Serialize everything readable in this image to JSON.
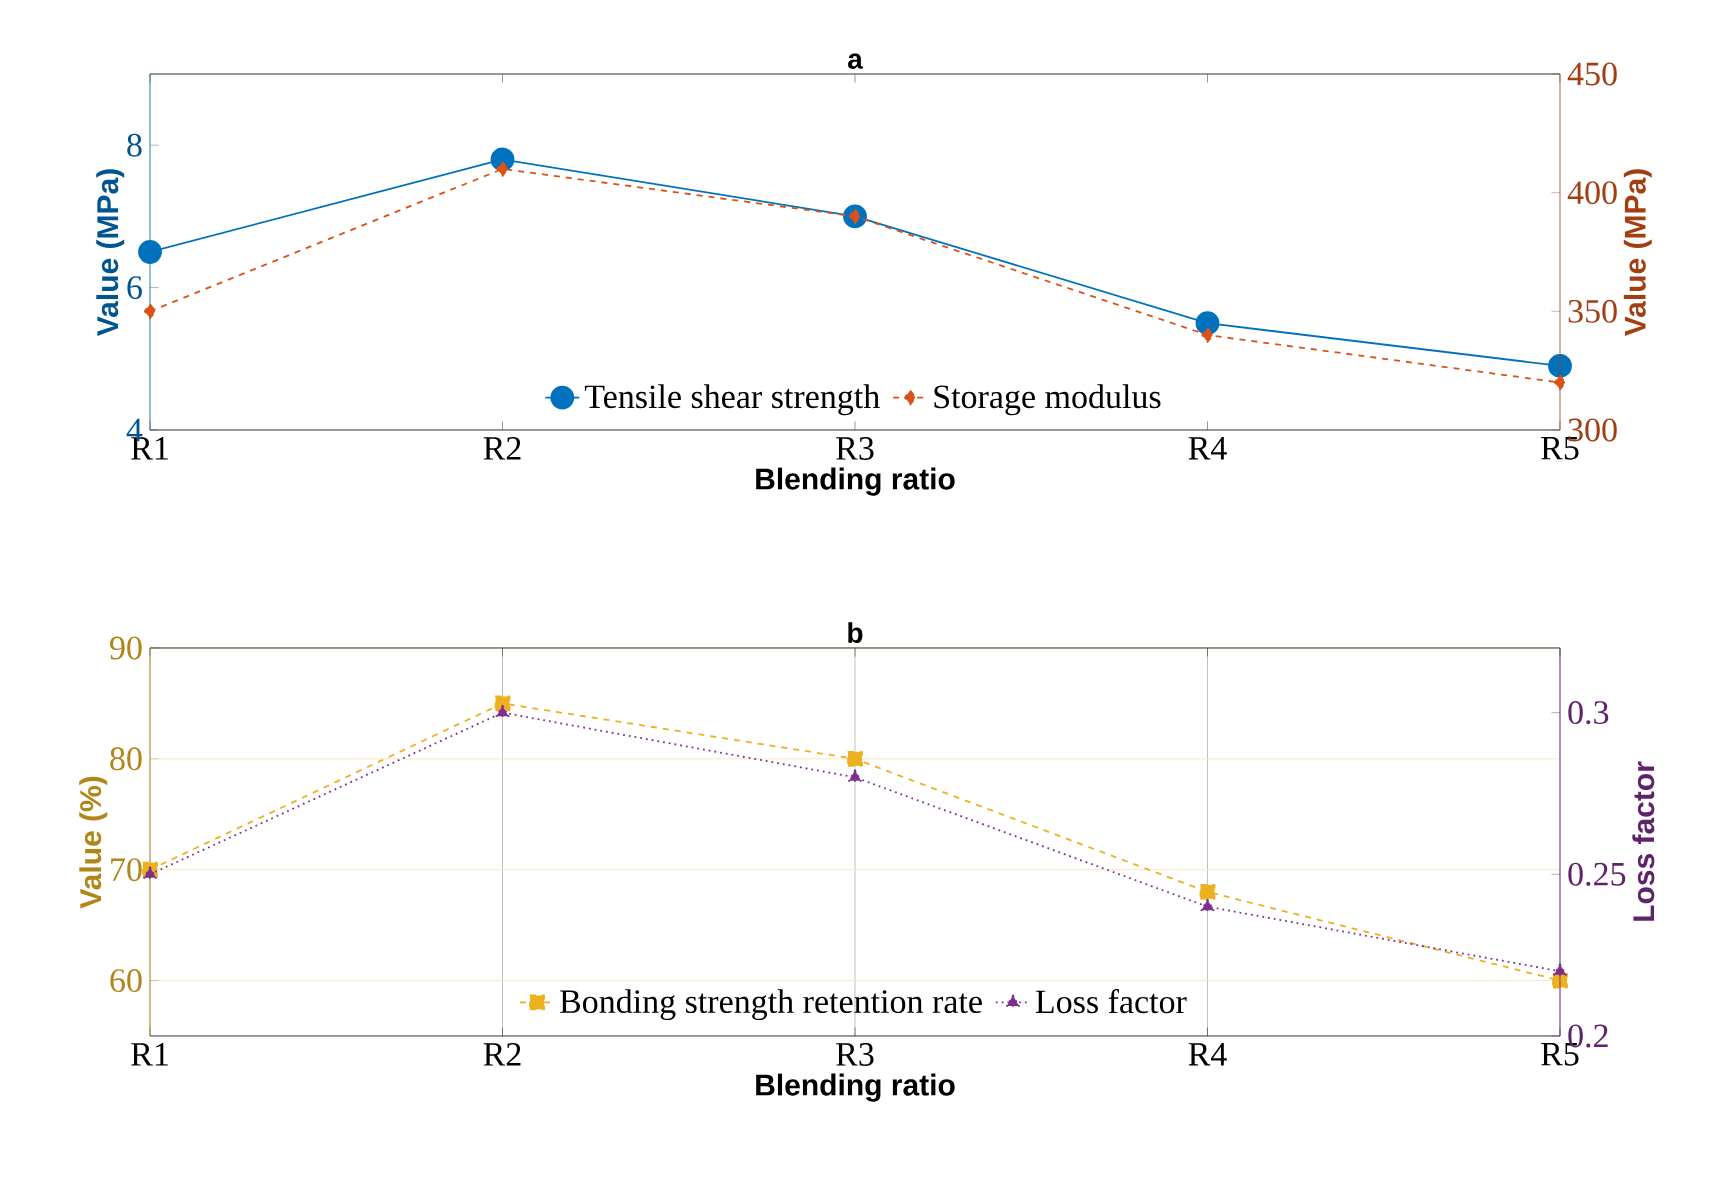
{
  "chart_data": [
    {
      "type": "line",
      "title": "a",
      "xlabel": "Blending ratio",
      "ylabel": "Value (MPa)",
      "y2label": "Value (MPa)",
      "categories": [
        "R1",
        "R2",
        "R3",
        "R4",
        "R5"
      ],
      "ylim": [
        4,
        9
      ],
      "yticks": [
        4,
        6,
        8
      ],
      "y2lim": [
        300,
        450
      ],
      "y2ticks": [
        300,
        350,
        400,
        450
      ],
      "legend": "bottom",
      "series": [
        {
          "name": "Tensile shear strength",
          "color": "#0072bd",
          "values": [
            6.5,
            7.8,
            7.0,
            5.5,
            4.9
          ],
          "marker": "circle",
          "line_style": "solid"
        },
        {
          "name": "Storage modulus",
          "color": "#d95319",
          "values": [
            350,
            410,
            390,
            340,
            320
          ],
          "marker": "diamond",
          "line_style": "dashed",
          "axis": "y2"
        }
      ]
    },
    {
      "type": "line",
      "title": "b",
      "xlabel": "Blending ratio",
      "ylabel": "Value (%)",
      "y2label": "Loss factor",
      "categories": [
        "R1",
        "R2",
        "R3",
        "R4",
        "R5"
      ],
      "ylim": [
        55,
        90
      ],
      "yticks": [
        60,
        70,
        80,
        90
      ],
      "y2lim": [
        0.2,
        0.32
      ],
      "y2ticks": [
        0.2,
        0.25,
        0.3
      ],
      "legend": "bottom",
      "grid": true,
      "series": [
        {
          "name": "Bonding strength retention rate",
          "color": "#edb120",
          "values": [
            70,
            85,
            80,
            68,
            60
          ],
          "marker": "square",
          "line_style": "dashed"
        },
        {
          "name": "Loss factor",
          "color": "#7e2f8e",
          "values": [
            0.25,
            0.3,
            0.28,
            0.24,
            0.22
          ],
          "marker": "triangle",
          "line_style": "dotted",
          "axis": "y2"
        }
      ]
    }
  ]
}
